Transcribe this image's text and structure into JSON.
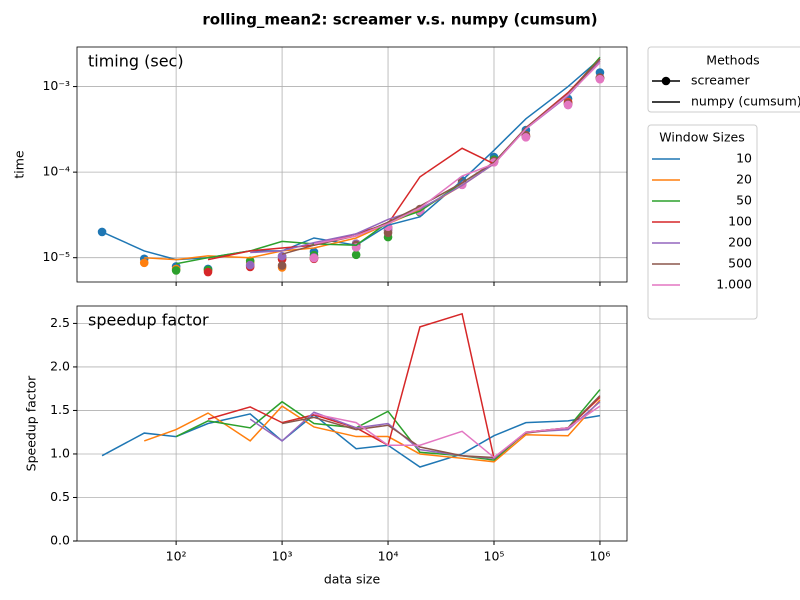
{
  "title": "rolling_mean2:  screamer v.s. numpy (cumsum)",
  "chart_data": [
    {
      "type": "line",
      "annotation": "timing (sec)",
      "y_label": "time",
      "legend_title": "Methods",
      "methods": [
        "screamer",
        "numpy (cumsum)"
      ],
      "series_legend_title": "Window Sizes",
      "ylog": true,
      "xlog": true,
      "grid": true,
      "xlim": [
        11.6,
        1800000
      ],
      "ylim": [
        5.2e-06,
        0.0029
      ],
      "yticks": [
        {
          "value": 1e-05,
          "label": "10⁻⁵"
        },
        {
          "value": 0.0001,
          "label": "10⁻⁴"
        },
        {
          "value": 0.001,
          "label": "10⁻³"
        }
      ],
      "x": [
        20,
        50,
        100,
        200,
        500,
        1000,
        2000,
        5000,
        10000,
        20000,
        50000,
        100000,
        200000,
        500000,
        1000000
      ],
      "series": [
        {
          "name": "10",
          "color": "#1f77b4",
          "values": [
            2e-05,
            1.2e-05,
            9.5e-06,
            1e-05,
            1.2e-05,
            1.2e-05,
            1.7e-05,
            1.4e-05,
            2.4e-05,
            3e-05,
            8e-05,
            0.00018,
            0.00042,
            0.001,
            0.0021
          ],
          "screamer": [
            2e-05,
            9.7e-06,
            7.9e-06,
            7.4e-06,
            8.2e-06,
            1.04e-05,
            1.17e-05,
            1.32e-05,
            2.2e-05,
            3.5e-05,
            8e-05,
            0.00015,
            0.00031,
            0.00072,
            0.00146
          ]
        },
        {
          "name": "20",
          "color": "#ff7f0e",
          "values": [
            null,
            1e-05,
            9.5e-06,
            1.05e-05,
            1e-05,
            1.2e-05,
            1.3e-05,
            1.7e-05,
            2.5e-05,
            3.6e-05,
            7e-05,
            0.000125,
            0.00033,
            0.0008,
            0.002
          ],
          "screamer": [
            null,
            8.7e-06,
            7.4e-06,
            7.1e-06,
            8.7e-06,
            7.7e-06,
            9.9e-06,
            1.42e-05,
            2.1e-05,
            3.6e-05,
            7.4e-05,
            0.000137,
            0.00027,
            0.00066,
            0.00123
          ]
        },
        {
          "name": "50",
          "color": "#2ca02c",
          "values": [
            null,
            null,
            8.5e-06,
            1e-05,
            1.2e-05,
            1.55e-05,
            1.45e-05,
            1.4e-05,
            2.6e-05,
            3.5e-05,
            7.5e-05,
            0.00013,
            0.00032,
            0.00082,
            0.0022
          ],
          "screamer": [
            null,
            null,
            7.1e-06,
            7.2e-06,
            9.2e-06,
            9.7e-06,
            1.07e-05,
            1.08e-05,
            1.74e-05,
            3.4e-05,
            7.6e-05,
            0.00014,
            0.00026,
            0.00063,
            0.00126
          ]
        },
        {
          "name": "100",
          "color": "#d62728",
          "values": [
            null,
            null,
            null,
            9.5e-06,
            1.2e-05,
            1.3e-05,
            1.4e-05,
            1.9e-05,
            2.5e-05,
            8.8e-05,
            0.00019,
            0.000125,
            0.00033,
            0.00085,
            0.0021
          ],
          "screamer": [
            null,
            null,
            null,
            6.8e-06,
            7.8e-06,
            9.6e-06,
            9.7e-06,
            1.46e-05,
            2.3e-05,
            3.6e-05,
            7.3e-05,
            0.000132,
            0.00026,
            0.00065,
            0.00127
          ]
        },
        {
          "name": "200",
          "color": "#9467bd",
          "values": [
            null,
            null,
            null,
            null,
            1.15e-05,
            1.2e-05,
            1.5e-05,
            1.9e-05,
            2.8e-05,
            3.7e-05,
            7e-05,
            0.000125,
            0.00032,
            0.00078,
            0.002
          ],
          "screamer": [
            null,
            null,
            null,
            null,
            8.2e-06,
            1.04e-05,
            1.01e-05,
            1.46e-05,
            2.1e-05,
            3.5e-05,
            7.1e-05,
            0.000132,
            0.00026,
            0.00061,
            0.00125
          ]
        },
        {
          "name": "500",
          "color": "#8c564b",
          "values": [
            null,
            null,
            null,
            null,
            null,
            1.1e-05,
            1.4e-05,
            1.8e-05,
            2.6e-05,
            4e-05,
            7.5e-05,
            0.00013,
            0.00033,
            0.00082,
            0.0021
          ],
          "screamer": [
            null,
            null,
            null,
            null,
            null,
            8.1e-06,
            9.9e-06,
            1.41e-05,
            1.95e-05,
            3.7e-05,
            7.6e-05,
            0.000135,
            0.00027,
            0.00063,
            0.00126
          ]
        },
        {
          "name": "1.000",
          "color": "#e377c2",
          "values": [
            null,
            null,
            null,
            null,
            null,
            null,
            1.45e-05,
            1.8e-05,
            2.5e-05,
            3.8e-05,
            9e-05,
            0.000125,
            0.00032,
            0.0008,
            0.0019
          ],
          "screamer": [
            null,
            null,
            null,
            null,
            null,
            null,
            9.9e-06,
            1.32e-05,
            2.3e-05,
            3.5e-05,
            7.1e-05,
            0.00013,
            0.000255,
            0.00061,
            0.00122
          ]
        }
      ]
    },
    {
      "type": "line",
      "annotation": "speedup factor",
      "y_label": "Speedup factor",
      "x_label": "data size",
      "xlog": true,
      "ylog": false,
      "grid": true,
      "xlim": [
        11.6,
        1800000
      ],
      "ylim": [
        0,
        2.7
      ],
      "xticks": [
        {
          "value": 100,
          "label": "10²"
        },
        {
          "value": 1000,
          "label": "10³"
        },
        {
          "value": 10000,
          "label": "10⁴"
        },
        {
          "value": 100000,
          "label": "10⁵"
        },
        {
          "value": 1000000,
          "label": "10⁶"
        }
      ],
      "yticks": [
        {
          "value": 0,
          "label": "0.0"
        },
        0.5,
        {
          "value": 1,
          "label": "1.0"
        },
        1.5,
        {
          "value": 2,
          "label": "2.0"
        },
        2.5
      ],
      "x": [
        20,
        50,
        100,
        200,
        500,
        1000,
        2000,
        5000,
        10000,
        20000,
        50000,
        100000,
        200000,
        500000,
        1000000
      ],
      "series": [
        {
          "color": "#1f77b4",
          "values": [
            0.98,
            1.24,
            1.2,
            1.35,
            1.46,
            1.15,
            1.45,
            1.06,
            1.1,
            0.85,
            1.0,
            1.21,
            1.36,
            1.38,
            1.44
          ]
        },
        {
          "color": "#ff7f0e",
          "values": [
            null,
            1.15,
            1.28,
            1.47,
            1.15,
            1.55,
            1.31,
            1.2,
            1.2,
            1.0,
            0.95,
            0.91,
            1.22,
            1.21,
            1.62
          ]
        },
        {
          "color": "#2ca02c",
          "values": [
            null,
            null,
            1.2,
            1.38,
            1.3,
            1.6,
            1.35,
            1.3,
            1.49,
            1.02,
            0.98,
            0.93,
            1.25,
            1.3,
            1.74
          ]
        },
        {
          "color": "#d62728",
          "values": [
            null,
            null,
            null,
            1.4,
            1.54,
            1.36,
            1.45,
            1.3,
            1.1,
            2.46,
            2.61,
            0.95,
            1.25,
            1.3,
            1.65
          ]
        },
        {
          "color": "#9467bd",
          "values": [
            null,
            null,
            null,
            null,
            1.4,
            1.15,
            1.48,
            1.3,
            1.35,
            1.05,
            0.98,
            0.95,
            1.25,
            1.28,
            1.6
          ]
        },
        {
          "color": "#8c564b",
          "values": [
            null,
            null,
            null,
            null,
            null,
            1.35,
            1.42,
            1.28,
            1.33,
            1.08,
            0.98,
            0.96,
            1.24,
            1.3,
            1.67
          ]
        },
        {
          "color": "#e377c2",
          "values": [
            null,
            null,
            null,
            null,
            null,
            null,
            1.46,
            1.36,
            1.1,
            1.1,
            1.26,
            0.96,
            1.25,
            1.3,
            1.55
          ]
        }
      ]
    }
  ]
}
